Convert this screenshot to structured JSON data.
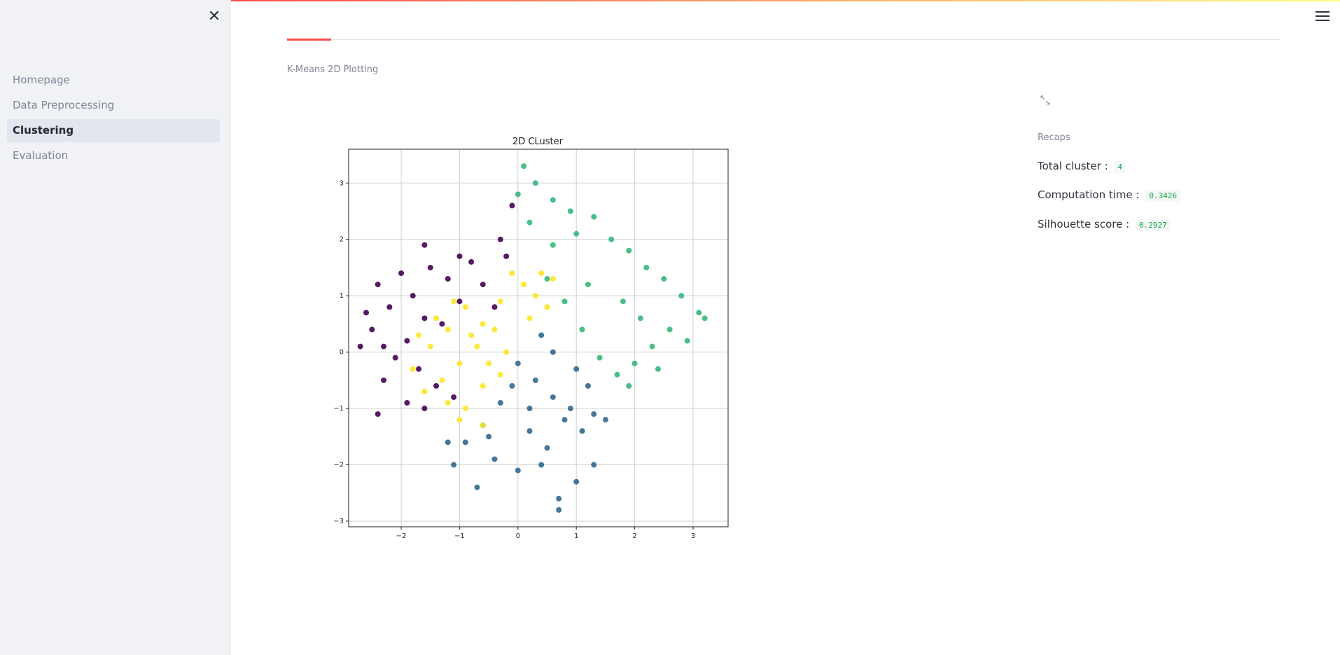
{
  "sidebar": {
    "close_glyph": "✕",
    "items": [
      {
        "label": "Homepage",
        "active": false
      },
      {
        "label": "Data Preprocessing",
        "active": false
      },
      {
        "label": "Clustering",
        "active": true
      },
      {
        "label": "Evaluation",
        "active": false
      }
    ]
  },
  "main": {
    "chart_section_label": "K-Means 2D Plotting",
    "expand_icon": "expand-icon",
    "recaps": {
      "label": "Recaps",
      "total_cluster_label": "Total cluster :",
      "total_cluster_value": "4",
      "computation_time_label": "Computation time :",
      "computation_time_value": "0.3426",
      "silhouette_label": "Silhouette score :",
      "silhouette_value": "0.2927"
    }
  },
  "colors": {
    "accent": "#ff4b4b",
    "cluster_0": "#440154",
    "cluster_1": "#31688e",
    "cluster_2": "#35b779",
    "cluster_3": "#fde725"
  },
  "chart_data": {
    "type": "scatter",
    "title": "2D CLuster",
    "xlim": [
      -2.9,
      3.6
    ],
    "ylim": [
      -3.1,
      3.6
    ],
    "xticks": [
      -2,
      -1,
      0,
      1,
      2,
      3
    ],
    "yticks": [
      -3,
      -2,
      -1,
      0,
      1,
      2,
      3
    ],
    "xlabel": "",
    "ylabel": "",
    "grid": true,
    "series": [
      {
        "cluster": 0,
        "color": "#440154",
        "points": [
          [
            -2.4,
            1.2
          ],
          [
            -2.2,
            0.8
          ],
          [
            -2.5,
            0.4
          ],
          [
            -2.3,
            0.1
          ],
          [
            -2.0,
            1.4
          ],
          [
            -1.8,
            1.0
          ],
          [
            -1.6,
            0.6
          ],
          [
            -1.9,
            0.2
          ],
          [
            -1.5,
            1.5
          ],
          [
            -1.2,
            1.3
          ],
          [
            -1.0,
            0.9
          ],
          [
            -1.3,
            0.5
          ],
          [
            -2.6,
            0.7
          ],
          [
            -2.1,
            -0.1
          ],
          [
            -1.7,
            -0.3
          ],
          [
            -1.4,
            -0.6
          ],
          [
            -1.1,
            -0.8
          ],
          [
            -0.8,
            1.6
          ],
          [
            -0.6,
            1.2
          ],
          [
            -0.4,
            0.8
          ],
          [
            -0.3,
            2.0
          ],
          [
            -0.1,
            2.6
          ],
          [
            -0.2,
            1.7
          ],
          [
            -1.6,
            1.9
          ],
          [
            -2.3,
            -0.5
          ],
          [
            -2.4,
            -1.1
          ],
          [
            -1.9,
            -0.9
          ],
          [
            -1.6,
            -1.0
          ],
          [
            -2.7,
            0.1
          ],
          [
            -1.0,
            1.7
          ]
        ]
      },
      {
        "cluster": 1,
        "color": "#31688e",
        "points": [
          [
            0.0,
            -0.2
          ],
          [
            0.3,
            -0.5
          ],
          [
            0.6,
            -0.8
          ],
          [
            0.9,
            -1.0
          ],
          [
            1.2,
            -0.6
          ],
          [
            -0.3,
            -0.9
          ],
          [
            -0.6,
            -1.3
          ],
          [
            -0.9,
            -1.6
          ],
          [
            0.2,
            -1.4
          ],
          [
            0.5,
            -1.7
          ],
          [
            0.8,
            -1.2
          ],
          [
            1.1,
            -1.4
          ],
          [
            -0.4,
            -1.9
          ],
          [
            -1.1,
            -2.0
          ],
          [
            -0.7,
            -2.4
          ],
          [
            0.0,
            -2.1
          ],
          [
            0.4,
            -2.0
          ],
          [
            1.0,
            -2.3
          ],
          [
            1.3,
            -2.0
          ],
          [
            0.7,
            -2.6
          ],
          [
            0.7,
            -2.8
          ],
          [
            1.5,
            -1.2
          ],
          [
            -0.1,
            -0.6
          ],
          [
            0.4,
            0.3
          ],
          [
            0.6,
            0.0
          ],
          [
            1.0,
            -0.3
          ],
          [
            -0.5,
            -1.5
          ],
          [
            0.2,
            -1.0
          ],
          [
            1.3,
            -1.1
          ],
          [
            -1.2,
            -1.6
          ]
        ]
      },
      {
        "cluster": 2,
        "color": "#35b779",
        "points": [
          [
            0.0,
            2.8
          ],
          [
            0.3,
            3.0
          ],
          [
            0.6,
            2.7
          ],
          [
            0.9,
            2.5
          ],
          [
            0.2,
            2.3
          ],
          [
            0.6,
            1.9
          ],
          [
            1.0,
            2.1
          ],
          [
            1.3,
            2.4
          ],
          [
            1.6,
            2.0
          ],
          [
            1.9,
            1.8
          ],
          [
            2.2,
            1.5
          ],
          [
            2.5,
            1.3
          ],
          [
            2.8,
            1.0
          ],
          [
            3.1,
            0.7
          ],
          [
            2.6,
            0.4
          ],
          [
            2.3,
            0.1
          ],
          [
            2.0,
            -0.2
          ],
          [
            1.7,
            -0.4
          ],
          [
            1.4,
            -0.1
          ],
          [
            1.1,
            0.4
          ],
          [
            0.8,
            0.9
          ],
          [
            0.5,
            1.3
          ],
          [
            1.2,
            1.2
          ],
          [
            1.8,
            0.9
          ],
          [
            2.1,
            0.6
          ],
          [
            2.9,
            0.2
          ],
          [
            3.2,
            0.6
          ],
          [
            1.9,
            -0.6
          ],
          [
            0.1,
            3.3
          ],
          [
            2.4,
            -0.3
          ]
        ]
      },
      {
        "cluster": 3,
        "color": "#fde725",
        "points": [
          [
            -1.8,
            -0.3
          ],
          [
            -1.5,
            0.1
          ],
          [
            -1.2,
            0.4
          ],
          [
            -0.9,
            0.8
          ],
          [
            -0.6,
            0.5
          ],
          [
            -0.3,
            0.9
          ],
          [
            0.1,
            1.2
          ],
          [
            0.4,
            1.4
          ],
          [
            0.6,
            1.3
          ],
          [
            -1.3,
            -0.5
          ],
          [
            -1.0,
            -0.2
          ],
          [
            -0.7,
            0.1
          ],
          [
            -0.4,
            0.4
          ],
          [
            -1.6,
            -0.7
          ],
          [
            -1.2,
            -0.9
          ],
          [
            -0.9,
            -1.0
          ],
          [
            -0.6,
            -0.6
          ],
          [
            -1.0,
            -1.2
          ],
          [
            -0.8,
            0.3
          ],
          [
            -0.2,
            0.0
          ],
          [
            -0.5,
            -0.2
          ],
          [
            0.2,
            0.6
          ],
          [
            -1.4,
            0.6
          ],
          [
            -0.1,
            1.4
          ],
          [
            0.5,
            0.8
          ],
          [
            -1.1,
            0.9
          ],
          [
            -0.3,
            -0.4
          ],
          [
            0.3,
            1.0
          ],
          [
            -1.7,
            0.3
          ],
          [
            -0.6,
            -1.3
          ]
        ]
      }
    ]
  }
}
